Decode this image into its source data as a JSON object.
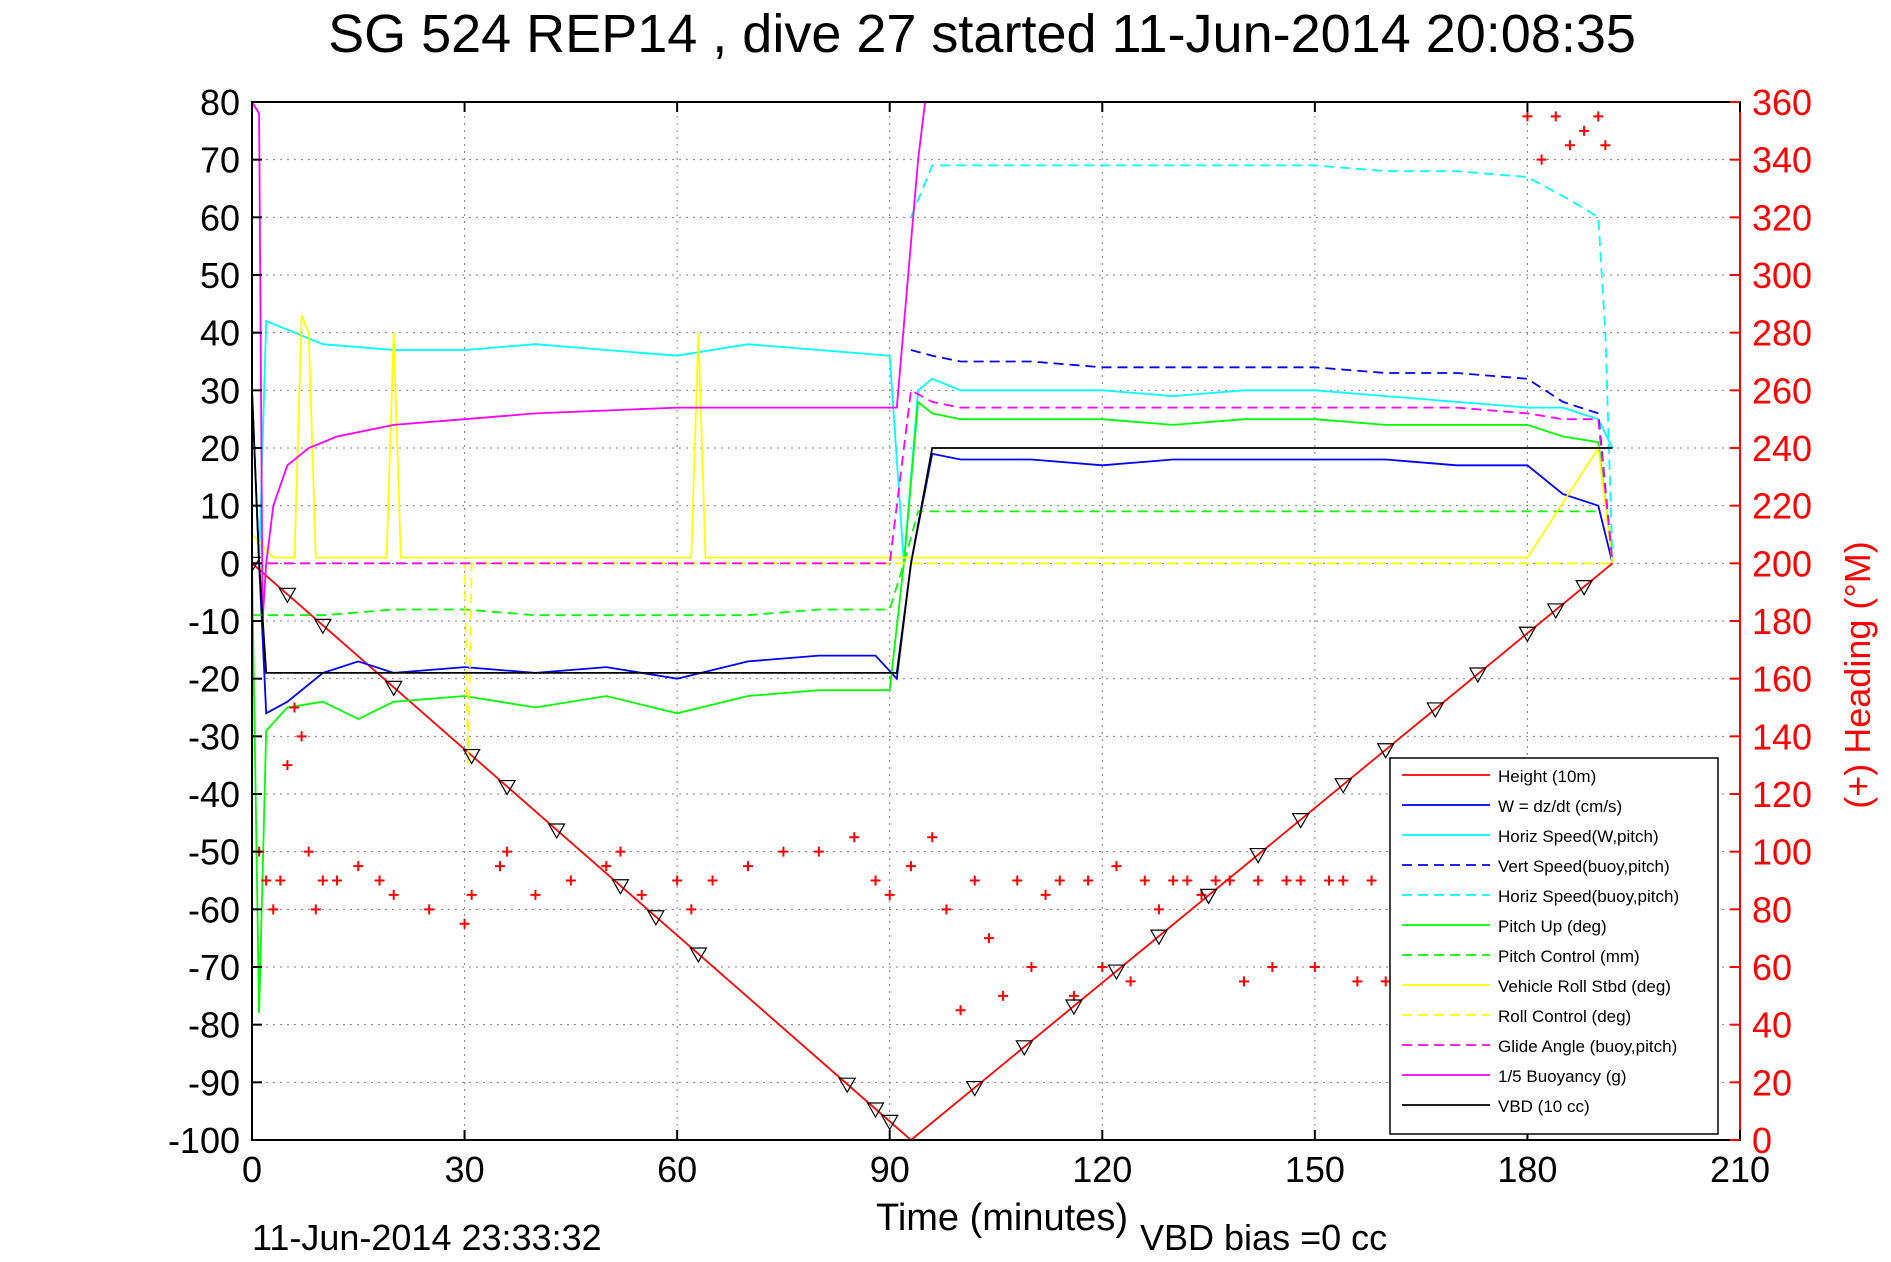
{
  "chart_data": {
    "type": "line",
    "title": "SG 524   REP14  , dive 27 started 11-Jun-2014 20:08:35",
    "xlabel": "Time (minutes)",
    "ylabel": "",
    "y2label": "(+) Heading (°M)",
    "xlim": [
      0,
      210
    ],
    "ylim": [
      -100,
      80
    ],
    "y2lim": [
      0,
      360
    ],
    "xticks": [
      "0",
      "30",
      "60",
      "90",
      "120",
      "150",
      "180",
      "210"
    ],
    "yticks": [
      "80",
      "70",
      "60",
      "50",
      "40",
      "30",
      "20",
      "10",
      "0",
      "-10",
      "-20",
      "-30",
      "-40",
      "-50",
      "-60",
      "-70",
      "-80",
      "-90",
      "-100"
    ],
    "y2ticks": [
      "360",
      "340",
      "320",
      "300",
      "280",
      "260",
      "240",
      "220",
      "200",
      "180",
      "160",
      "140",
      "120",
      "100",
      "80",
      "60",
      "40",
      "20",
      "0"
    ],
    "grid": true,
    "legend_position": "bottom-right",
    "footer_left": "11-Jun-2014 23:33:32",
    "footer_right": "VBD bias =0 cc",
    "colors": {
      "axes": "#000000",
      "right_axis": "#ff0000",
      "grid": "#7f7f7f"
    },
    "series": [
      {
        "name": "Height (10m)",
        "color": "#ff0000",
        "style": "solid",
        "x": [
          0,
          93,
          192
        ],
        "y": [
          0,
          -100,
          0
        ]
      },
      {
        "name": "W = dz/dt (cm/s)",
        "color": "#0000ff",
        "style": "solid",
        "x": [
          0,
          1,
          2,
          5,
          10,
          15,
          20,
          30,
          40,
          50,
          60,
          70,
          80,
          88,
          91,
          93,
          96,
          100,
          110,
          120,
          130,
          140,
          150,
          160,
          170,
          180,
          185,
          190,
          192
        ],
        "y": [
          30,
          0,
          -26,
          -24,
          -19,
          -17,
          -19,
          -18,
          -19,
          -18,
          -20,
          -17,
          -16,
          -16,
          -20,
          0,
          19,
          18,
          18,
          17,
          18,
          18,
          18,
          18,
          17,
          17,
          12,
          10,
          0
        ]
      },
      {
        "name": "Horiz Speed(W,pitch)",
        "color": "#00ffff",
        "style": "solid",
        "x": [
          0,
          1,
          2,
          10,
          20,
          30,
          40,
          50,
          60,
          70,
          80,
          90,
          92,
          94,
          96,
          100,
          110,
          120,
          130,
          140,
          150,
          160,
          170,
          180,
          185,
          190,
          192
        ],
        "y": [
          0,
          0,
          42,
          38,
          37,
          37,
          38,
          37,
          36,
          38,
          37,
          36,
          0,
          30,
          32,
          30,
          30,
          30,
          29,
          30,
          30,
          29,
          28,
          27,
          27,
          25,
          20
        ]
      },
      {
        "name": "Vert Speed(buoy,pitch)",
        "color": "#0000ff",
        "style": "dashed",
        "x": [
          93,
          96,
          100,
          110,
          120,
          130,
          140,
          150,
          160,
          170,
          180,
          185,
          190,
          192
        ],
        "y": [
          37,
          36,
          35,
          35,
          34,
          34,
          34,
          34,
          33,
          33,
          32,
          28,
          26,
          0
        ]
      },
      {
        "name": "Horiz Speed(buoy,pitch)",
        "color": "#00ffff",
        "style": "dashed",
        "x": [
          93,
          96,
          100,
          110,
          120,
          130,
          140,
          150,
          160,
          170,
          180,
          186,
          190,
          191,
          192
        ],
        "y": [
          60,
          69,
          69,
          69,
          69,
          69,
          69,
          69,
          68,
          68,
          67,
          63,
          60,
          40,
          0
        ]
      },
      {
        "name": "Pitch Up (deg)",
        "color": "#00ff00",
        "style": "solid",
        "x": [
          0,
          1,
          2,
          5,
          10,
          15,
          20,
          30,
          40,
          50,
          60,
          70,
          80,
          90,
          92,
          94,
          96,
          100,
          110,
          120,
          130,
          140,
          150,
          160,
          170,
          180,
          185,
          190,
          192
        ],
        "y": [
          0,
          -78,
          -29,
          -25,
          -24,
          -27,
          -24,
          -23,
          -25,
          -23,
          -26,
          -23,
          -22,
          -22,
          0,
          28,
          26,
          25,
          25,
          25,
          24,
          25,
          25,
          24,
          24,
          24,
          22,
          21,
          0
        ]
      },
      {
        "name": "Pitch Control (mm)",
        "color": "#00ff00",
        "style": "dashed",
        "x": [
          0,
          2,
          10,
          20,
          30,
          40,
          50,
          60,
          70,
          80,
          90,
          92,
          94,
          96,
          100,
          110,
          120,
          130,
          140,
          150,
          160,
          170,
          180,
          190
        ],
        "y": [
          -9,
          -9,
          -9,
          -8,
          -8,
          -9,
          -9,
          -9,
          -9,
          -8,
          -8,
          0,
          9,
          9,
          9,
          9,
          9,
          9,
          9,
          9,
          9,
          9,
          9,
          9
        ]
      },
      {
        "name": "Vehicle Roll Stbd (deg)",
        "color": "#ffff00",
        "style": "solid",
        "x": [
          0,
          3,
          6,
          7,
          8,
          9,
          19,
          20,
          21,
          60,
          62,
          63,
          64,
          65,
          85,
          90,
          96,
          100,
          110,
          120,
          130,
          140,
          150,
          160,
          170,
          180,
          190,
          192
        ],
        "y": [
          5,
          1,
          1,
          43,
          40,
          1,
          1,
          40,
          1,
          1,
          1,
          40,
          1,
          1,
          1,
          1,
          1,
          1,
          1,
          1,
          1,
          1,
          1,
          1,
          1,
          1,
          20,
          0
        ]
      },
      {
        "name": "Roll Control (deg)",
        "color": "#ffff00",
        "style": "dashed",
        "x": [
          0,
          30,
          30.5,
          31,
          90,
          96,
          192
        ],
        "y": [
          0,
          0,
          -35,
          0,
          0,
          0,
          0
        ]
      },
      {
        "name": "Glide Angle (buoy,pitch)",
        "color": "#ff00ff",
        "style": "dashed",
        "x": [
          0,
          90,
          93,
          96,
          100,
          110,
          120,
          130,
          140,
          150,
          160,
          170,
          180,
          185,
          190,
          192
        ],
        "y": [
          0,
          0,
          30,
          28,
          27,
          27,
          27,
          27,
          27,
          27,
          27,
          27,
          26,
          25,
          25,
          0
        ]
      },
      {
        "name": "1/5 Buoyancy (g)",
        "color": "#ff00ff",
        "style": "solid",
        "x": [
          0,
          1,
          1.5,
          2,
          3,
          5,
          8,
          12,
          20,
          30,
          40,
          50,
          60,
          70,
          80,
          90,
          91,
          94,
          95
        ],
        "y": [
          80,
          78,
          -10,
          0,
          10,
          17,
          20,
          22,
          24,
          25,
          26,
          26.5,
          27,
          27,
          27,
          27,
          27,
          70,
          80
        ]
      },
      {
        "name": "VBD (10 cc)",
        "color": "#000000",
        "style": "solid",
        "x": [
          0,
          1,
          2,
          10,
          30,
          60,
          90,
          91,
          93,
          96,
          100,
          150,
          192
        ],
        "y": [
          30,
          0,
          -19,
          -19,
          -19,
          -19,
          -19,
          -19,
          0,
          20,
          20,
          20,
          20
        ]
      },
      {
        "name": "",
        "color": "#ff0000",
        "style": "markers",
        "axis": "right",
        "x": [
          1,
          2,
          3,
          4,
          5,
          6,
          7,
          8,
          9,
          10,
          12,
          15,
          18,
          20,
          25,
          30,
          31,
          35,
          36,
          40,
          45,
          50,
          52,
          55,
          60,
          62,
          65,
          70,
          75,
          80,
          85,
          88,
          90,
          93,
          96,
          98,
          100,
          102,
          104,
          106,
          108,
          110,
          112,
          114,
          116,
          118,
          120,
          122,
          124,
          126,
          128,
          130,
          132,
          134,
          136,
          138,
          140,
          142,
          144,
          146,
          148,
          150,
          152,
          154,
          156,
          158,
          160,
          162,
          164,
          166,
          168,
          170,
          172,
          174,
          176,
          178,
          180,
          182,
          184,
          186,
          188,
          190,
          191
        ],
        "y": [
          100,
          90,
          80,
          90,
          130,
          150,
          140,
          100,
          80,
          90,
          90,
          95,
          90,
          85,
          80,
          75,
          85,
          95,
          100,
          85,
          90,
          95,
          100,
          85,
          90,
          80,
          90,
          95,
          100,
          100,
          105,
          90,
          85,
          95,
          105,
          80,
          45,
          90,
          70,
          50,
          90,
          60,
          85,
          90,
          50,
          90,
          60,
          95,
          55,
          90,
          80,
          90,
          90,
          85,
          90,
          90,
          55,
          90,
          60,
          90,
          90,
          60,
          90,
          90,
          55,
          90,
          55,
          85,
          90,
          80,
          90,
          85,
          90,
          85,
          90,
          80,
          355,
          340,
          355,
          345,
          350,
          355,
          345
        ]
      }
    ]
  }
}
